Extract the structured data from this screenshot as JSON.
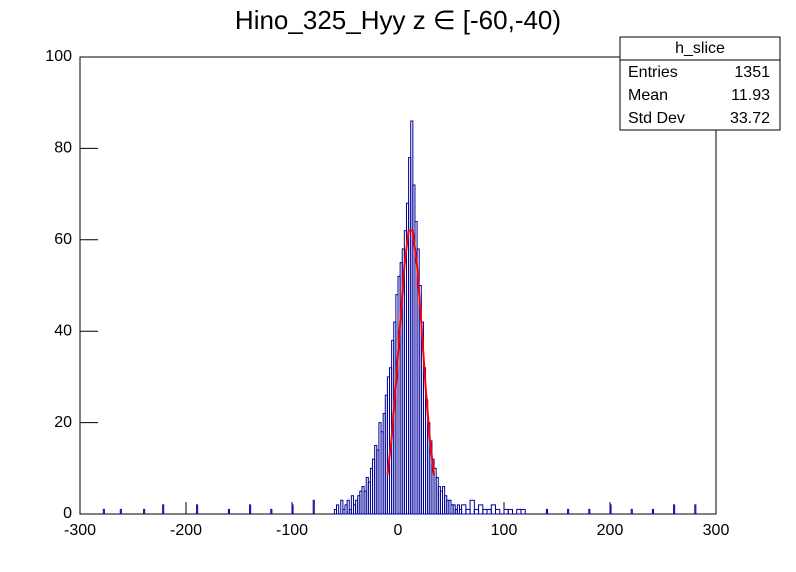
{
  "chart_data": {
    "type": "histogram",
    "title": "Hino_325_Hyy z  ∈ [-60,-40)",
    "color": "#000099",
    "bins": [
      -300,
      -278,
      -277,
      -262,
      -261,
      -240,
      -239,
      -222,
      -221,
      -190,
      -189,
      -160,
      -159,
      -140,
      -139,
      -120,
      -119,
      -100,
      -99,
      -80,
      -79,
      -60,
      -58,
      -56,
      -54,
      -52,
      -50,
      -48,
      -46,
      -44,
      -42,
      -40,
      -38,
      -36,
      -34,
      -32,
      -30,
      -28,
      -26,
      -24,
      -22,
      -20,
      -18,
      -16,
      -14,
      -12,
      -10,
      -8,
      -6,
      -4,
      -2,
      0,
      2,
      4,
      6,
      8,
      10,
      12,
      14,
      16,
      18,
      20,
      22,
      24,
      26,
      28,
      30,
      32,
      34,
      36,
      38,
      40,
      42,
      44,
      46,
      48,
      50,
      52,
      54,
      56,
      58,
      60,
      64,
      68,
      72,
      76,
      80,
      84,
      88,
      92,
      96,
      100,
      104,
      108,
      112,
      116,
      120,
      140,
      141,
      160,
      161,
      180,
      181,
      200,
      201,
      220,
      221,
      240,
      241,
      260,
      261,
      280,
      281,
      300
    ],
    "values": [
      0,
      1,
      0,
      1,
      0,
      1,
      0,
      2,
      0,
      2,
      0,
      1,
      0,
      2,
      0,
      1,
      0,
      2,
      0,
      3,
      0,
      1,
      2,
      0,
      3,
      1,
      2,
      3,
      1,
      4,
      2,
      3,
      4,
      5,
      6,
      5,
      8,
      7,
      10,
      12,
      15,
      14,
      20,
      18,
      22,
      26,
      30,
      32,
      38,
      42,
      48,
      52,
      55,
      58,
      62,
      68,
      78,
      86,
      72,
      64,
      58,
      50,
      42,
      32,
      25,
      20,
      16,
      12,
      10,
      8,
      6,
      5,
      6,
      4,
      3,
      3,
      2,
      2,
      1,
      2,
      1,
      2,
      1,
      3,
      1,
      2,
      1,
      1,
      2,
      1,
      0,
      1,
      1,
      0,
      1,
      1,
      0,
      1,
      0,
      1,
      0,
      1,
      0,
      2,
      0,
      1,
      0,
      1,
      0,
      2,
      0,
      2,
      0
    ],
    "fit": {
      "color": "#ff0000",
      "x": [
        -10,
        -6,
        -2,
        2,
        6,
        10,
        14,
        18,
        22,
        26,
        30,
        34
      ],
      "values": [
        8.5,
        16.5,
        28,
        41.7,
        54.3,
        62,
        62,
        54.3,
        41.7,
        28,
        16.5,
        8.5
      ]
    },
    "xlim": [
      -300,
      300
    ],
    "xticks": [
      -300,
      -200,
      -100,
      0,
      100,
      200,
      300
    ],
    "ylim": [
      0,
      100
    ],
    "yticks": [
      0,
      20,
      40,
      60,
      80,
      100
    ],
    "stats": {
      "title": "h_slice",
      "rows": [
        {
          "label": "Entries",
          "value": 1351
        },
        {
          "label": "Mean",
          "value": 11.93
        },
        {
          "label": "Std Dev",
          "value": 33.72
        }
      ]
    }
  }
}
